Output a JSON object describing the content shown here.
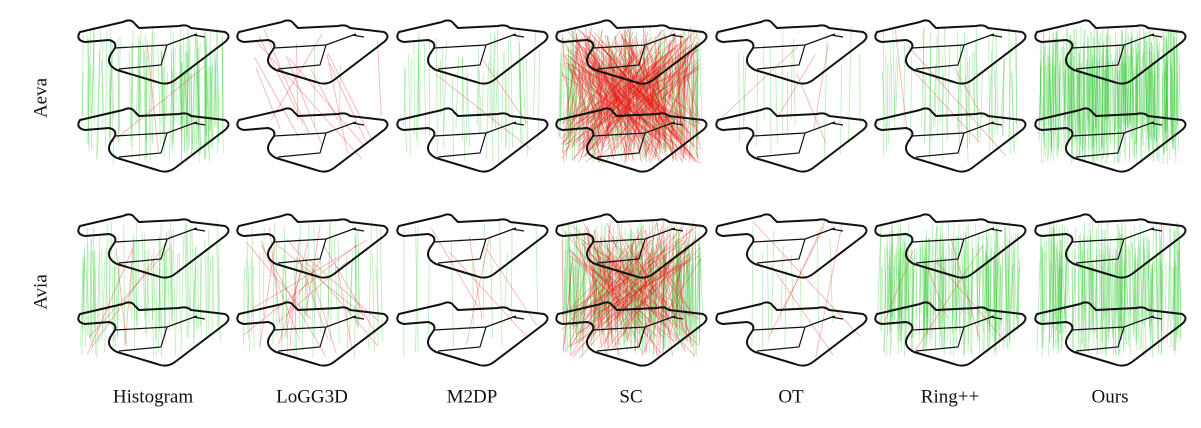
{
  "rows": [
    "Aeva",
    "Avia"
  ],
  "columns": [
    "Histogram",
    "LoGG3D",
    "M2DP",
    "SC",
    "OT",
    "Ring++",
    "Ours"
  ]
}
